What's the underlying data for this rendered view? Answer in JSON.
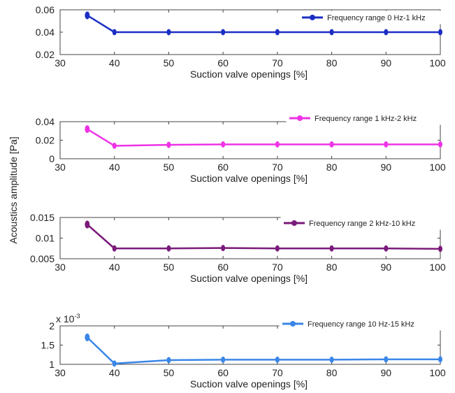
{
  "figure": {
    "shared_ylabel": "Acoustics amplitude   [Pa]"
  },
  "chart_data": [
    {
      "type": "line",
      "x": [
        35,
        40,
        50,
        60,
        70,
        80,
        90,
        100
      ],
      "series": [
        {
          "name": "Frequency range 0 Hz-1 kHz",
          "values": [
            0.055,
            0.04,
            0.04,
            0.04,
            0.04,
            0.04,
            0.04,
            0.04
          ],
          "color": "#1c2fc4"
        }
      ],
      "xlabel": "Suction valve openings [%]",
      "xlim": [
        30,
        100
      ],
      "xticks": [
        30,
        40,
        50,
        60,
        70,
        80,
        90,
        100
      ],
      "xtick_labels": [
        "30",
        "40",
        "50",
        "60",
        "70",
        "80",
        "90",
        "100"
      ],
      "ylim": [
        0.02,
        0.06
      ],
      "yticks": [
        0.02,
        0.04,
        0.06
      ],
      "ytick_labels": [
        "0.02",
        "0.04",
        "0.06"
      ],
      "legend": "top-right",
      "grid": false
    },
    {
      "type": "line",
      "x": [
        35,
        40,
        50,
        60,
        70,
        80,
        90,
        100
      ],
      "series": [
        {
          "name": "Frequency range 1 kHz-2 kHz",
          "values": [
            0.032,
            0.014,
            0.015,
            0.0155,
            0.0155,
            0.0155,
            0.0155,
            0.0155
          ],
          "color": "#ee33e6"
        }
      ],
      "xlabel": "Suction valve openings [%]",
      "xlim": [
        30,
        100
      ],
      "xticks": [
        30,
        40,
        50,
        60,
        70,
        80,
        90,
        100
      ],
      "xtick_labels": [
        "30",
        "40",
        "50",
        "60",
        "70",
        "80",
        "90",
        "100"
      ],
      "ylim": [
        0,
        0.04
      ],
      "yticks": [
        0,
        0.02,
        0.04
      ],
      "ytick_labels": [
        "0",
        "0.02",
        "0.04"
      ],
      "legend": "top-right",
      "grid": false
    },
    {
      "type": "line",
      "x": [
        35,
        40,
        50,
        60,
        70,
        80,
        90,
        100
      ],
      "series": [
        {
          "name": "Frequency range 2 kHz-10 kHz",
          "values": [
            0.0133,
            0.0075,
            0.0075,
            0.0076,
            0.0075,
            0.0075,
            0.0075,
            0.0074
          ],
          "color": "#7a1a7a"
        }
      ],
      "xlabel": "Suction valve openings [%]",
      "xlim": [
        30,
        100
      ],
      "xticks": [
        30,
        40,
        50,
        60,
        70,
        80,
        90,
        100
      ],
      "xtick_labels": [
        "30",
        "40",
        "50",
        "60",
        "70",
        "80",
        "90",
        "100"
      ],
      "ylim": [
        0.005,
        0.015
      ],
      "yticks": [
        0.005,
        0.01,
        0.015
      ],
      "ytick_labels": [
        "0.005",
        "0.01",
        "0.015"
      ],
      "legend": "top-right",
      "grid": false
    },
    {
      "type": "line",
      "x": [
        35,
        40,
        50,
        60,
        70,
        80,
        90,
        100
      ],
      "series": [
        {
          "name": "Frequency range 10 Hz-15 kHz",
          "values": [
            0.0017,
            0.00102,
            0.00111,
            0.00112,
            0.00112,
            0.00112,
            0.00113,
            0.00113
          ],
          "color": "#3a86e8"
        }
      ],
      "xlabel": "Suction valve openings [%]",
      "xlim": [
        30,
        100
      ],
      "xticks": [
        30,
        40,
        50,
        60,
        70,
        80,
        90,
        100
      ],
      "xtick_labels": [
        "30",
        "40",
        "50",
        "60",
        "70",
        "80",
        "90",
        "100"
      ],
      "ylim": [
        0.001,
        0.002
      ],
      "yticks": [
        0.001,
        0.0015,
        0.002
      ],
      "ytick_labels": [
        "1",
        "1.5",
        "2"
      ],
      "y_multiplier": "x 10",
      "y_exponent": "-3",
      "legend": "top-right",
      "grid": false
    }
  ]
}
